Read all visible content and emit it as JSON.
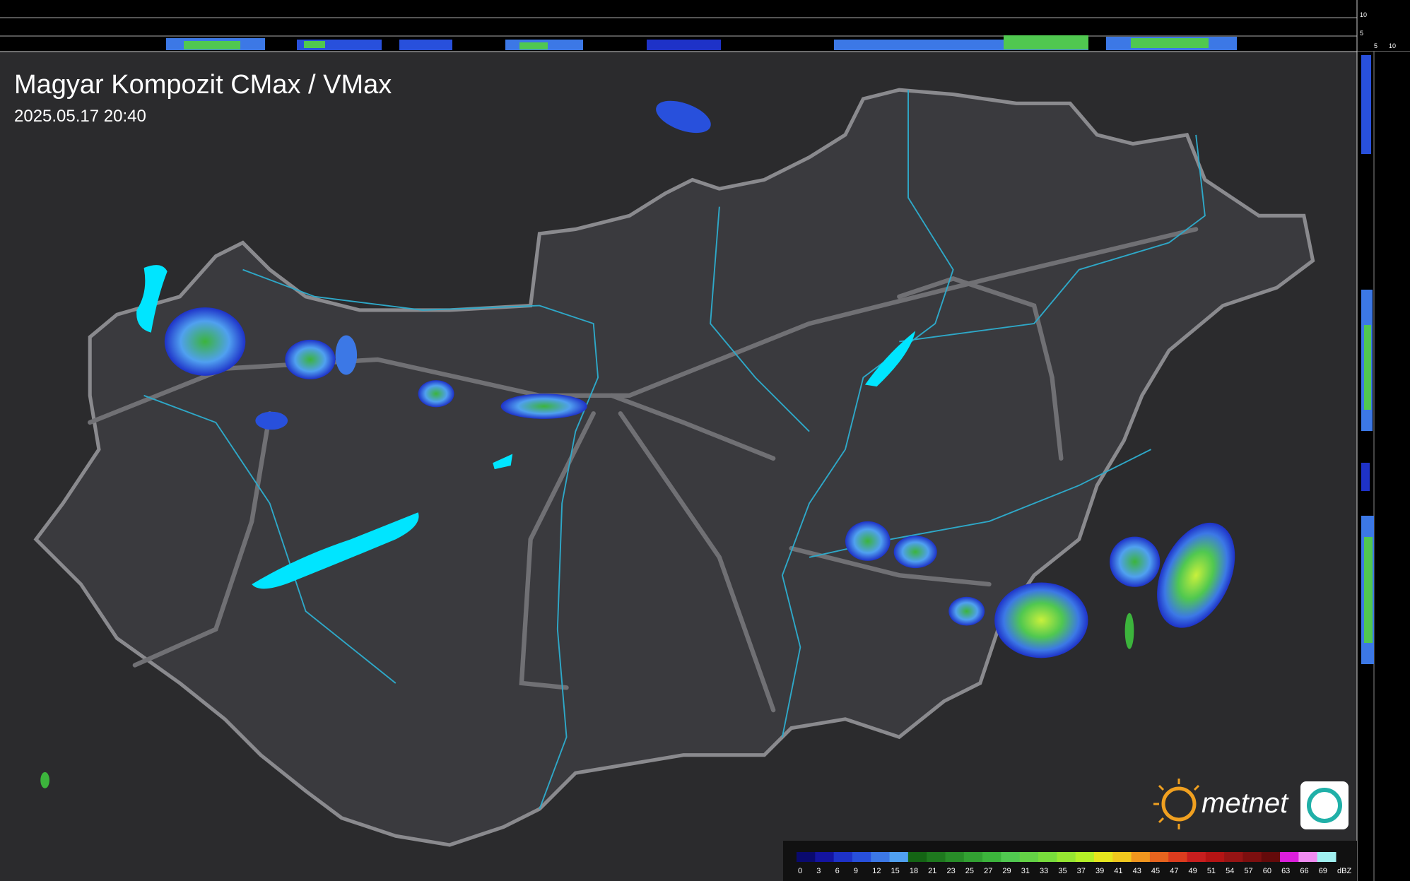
{
  "header": {
    "title": "Magyar Kompozit CMax / VMax",
    "timestamp": "2025.05.17 20:40"
  },
  "side_scale": {
    "top_labels": [
      10,
      5
    ],
    "corner_labels": [
      5,
      10
    ]
  },
  "logo": {
    "text": "metnet"
  },
  "legend": {
    "unit": "dBZ",
    "ticks": [
      0,
      3,
      6,
      9,
      12,
      15,
      18,
      21,
      23,
      25,
      27,
      29,
      31,
      33,
      35,
      37,
      39,
      41,
      43,
      45,
      47,
      49,
      51,
      54,
      57,
      60,
      63,
      66,
      69
    ],
    "colors": [
      "#0a0a6e",
      "#1414a0",
      "#1e32c8",
      "#2850dc",
      "#3c78e6",
      "#50a0f0",
      "#146414",
      "#1e781e",
      "#288c28",
      "#32a032",
      "#3cb43c",
      "#50c850",
      "#64d246",
      "#78dc3c",
      "#96e632",
      "#b4f028",
      "#e6e61e",
      "#f0c81e",
      "#f0961e",
      "#e6641e",
      "#dc3c1e",
      "#c81e1e",
      "#b41414",
      "#961414",
      "#7d0f0f",
      "#640a0a",
      "#dc1edc",
      "#f08cf0",
      "#a0f0f0"
    ]
  }
}
